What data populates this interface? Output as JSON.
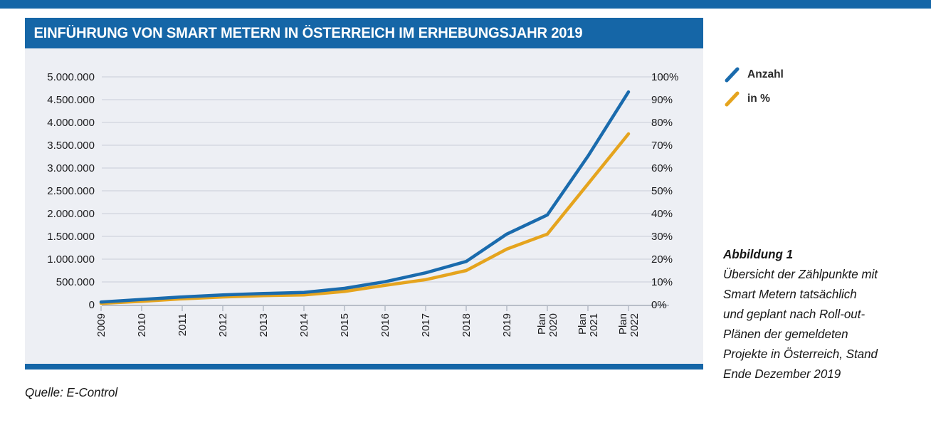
{
  "page": {
    "title": "EINFÜHRUNG VON SMART METERN IN ÖSTERREICH IM ERHEBUNGSJAHR 2019",
    "source": "Quelle: E-Control",
    "caption_title": "Abbildung 1",
    "caption_lines": [
      "Übersicht der Zählpunkte mit",
      "Smart Metern tatsächlich",
      "und geplant nach Roll-out-",
      "Plänen der gemeldeten",
      "Projekte in Österreich, Stand",
      "Ende Dezember 2019"
    ]
  },
  "legend": [
    {
      "label": "Anzahl",
      "color": "#1a6bad"
    },
    {
      "label": "in %",
      "color": "#e5a41e"
    }
  ],
  "colors": {
    "bar_blue": "#1566a7",
    "panel_bg": "#edeff4",
    "gridline": "#c9cdd7",
    "axis": "#a7aeba",
    "axis_text": "#1d1d1f",
    "line_blue": "#1a6bad",
    "line_orange": "#e5a41e"
  },
  "chart_data": {
    "type": "line",
    "title": "Einführung von Smart Metern in Österreich im Erhebungsjahr 2019",
    "categories": [
      "2009",
      "2010",
      "2011",
      "2012",
      "2013",
      "2014",
      "2015",
      "2016",
      "2017",
      "2018",
      "2019",
      "Plan 2020",
      "Plan 2021",
      "Plan 2022"
    ],
    "series": [
      {
        "name": "Anzahl",
        "axis": "left",
        "color": "#1a6bad",
        "values": [
          60000,
          115000,
          170000,
          215000,
          245000,
          270000,
          360000,
          505000,
          700000,
          950000,
          1550000,
          1970000,
          3260000,
          4670000
        ]
      },
      {
        "name": "in %",
        "axis": "right",
        "color": "#e5a41e",
        "values": [
          0.6,
          1.5,
          2.6,
          3.4,
          4.0,
          4.3,
          5.8,
          8.5,
          11,
          15,
          24.4,
          31,
          53,
          75
        ]
      }
    ],
    "left_axis": {
      "min": 0,
      "max": 5000000,
      "step": 500000,
      "ticks": [
        "0",
        "500.000",
        "1.000.000",
        "1.500.000",
        "2.000.000",
        "2.500.000",
        "3.000.000",
        "3.500.000",
        "4.000.000",
        "4.500.000",
        "5.000.000"
      ]
    },
    "right_axis": {
      "min": 0,
      "max": 100,
      "step": 10,
      "ticks": [
        "0%",
        "10%",
        "20%",
        "30%",
        "40%",
        "50%",
        "60%",
        "70%",
        "80%",
        "90%",
        "100%"
      ]
    },
    "grid": true,
    "legend_position": "right-top"
  }
}
